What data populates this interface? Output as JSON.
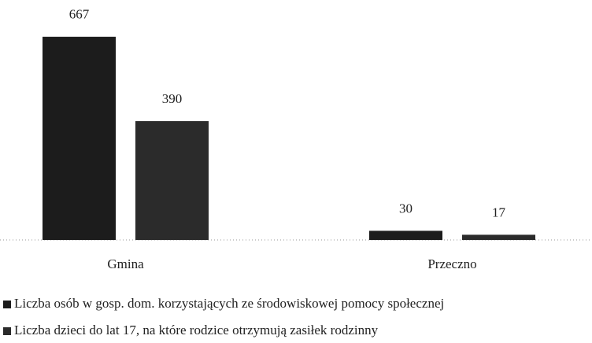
{
  "chart_data": {
    "type": "bar",
    "categories": [
      "Gmina",
      "Przeczno"
    ],
    "series": [
      {
        "name": "Liczba osób w gosp. dom. korzystających ze środowiskowej pomocy społecznej",
        "color": "#1c1c1c",
        "values": [
          667,
          30
        ]
      },
      {
        "name": "Liczba dzieci do lat 17, na które rodzice otrzymują zasiłek rodzinny",
        "color": "#2b2b2b",
        "values": [
          390,
          17
        ]
      }
    ],
    "ylim": [
      0,
      700
    ]
  }
}
